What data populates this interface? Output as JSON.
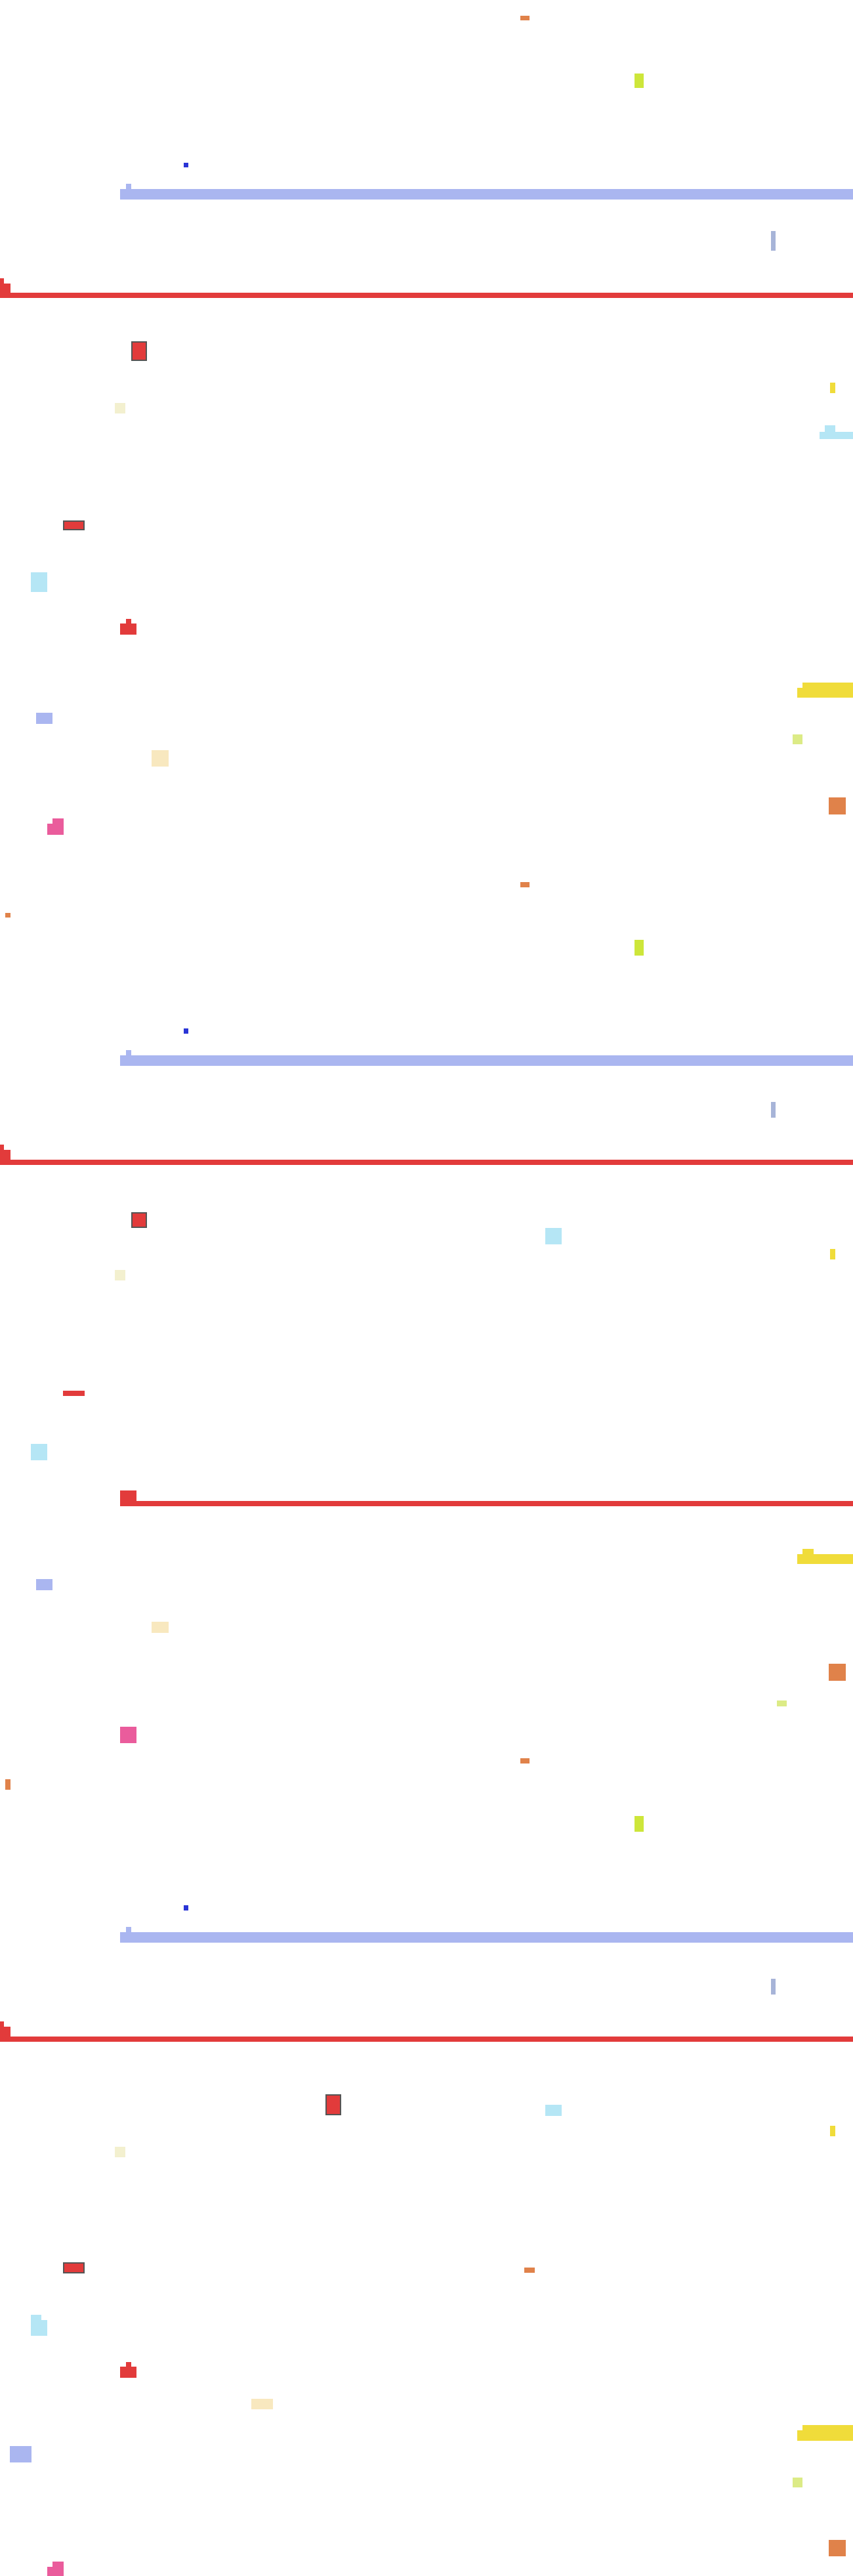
{
  "colors": {
    "background": "#ffffff",
    "orange": "#e0824a",
    "lime": "#cde63a",
    "blue": "#2a35d6",
    "periwinkle": "#aab6f0",
    "slate": "#a7b4d8",
    "red": "#e23b3b",
    "dark_outline": "#555555",
    "pale_yellow": "#f3f0cf",
    "yellow": "#f0dc3a",
    "light_cyan": "#b5e6f5",
    "cream": "#f8e8bf",
    "pink": "#ea5c9c",
    "light_lime": "#dceb86"
  },
  "texts": []
}
